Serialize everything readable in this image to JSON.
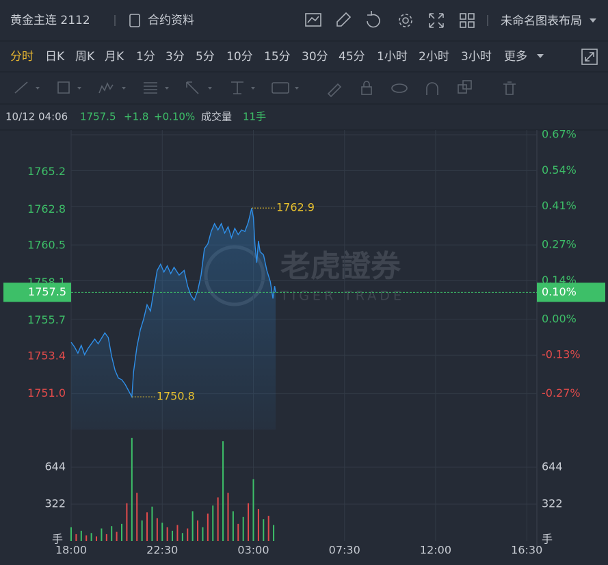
{
  "header": {
    "title": "黄金主连 2112",
    "contract": "合约资料",
    "layout": "未命名图表布局"
  },
  "periods": [
    "分时",
    "日K",
    "周K",
    "月K",
    "1分",
    "3分",
    "5分",
    "10分",
    "15分",
    "30分",
    "45分",
    "1小时",
    "2小时",
    "3小时",
    "更多"
  ],
  "info": {
    "time": "10/12 04:06",
    "price": 1757.5,
    "change": "+1.8",
    "percent": "+0.10%",
    "volume_label": "成交量",
    "volume": "11手"
  },
  "chart_data": {
    "type": "line",
    "color": "#2f8fe8",
    "up_color": "#3dbf68",
    "down_color": "#e24b4b",
    "watermark": [
      "老虎證券",
      "TIGER TRADE"
    ],
    "xlim": [
      "18:00",
      "17:00"
    ],
    "xticks": [
      "18:00",
      "22:30",
      "03:00",
      "07:30",
      "12:00",
      "16:30"
    ],
    "ylim": [
      1748.7,
      1767.6
    ],
    "yticks": [
      {
        "value": 1765.2,
        "label": "1765.2"
      },
      {
        "value": 1762.8,
        "label": "1762.8"
      },
      {
        "value": 1760.5,
        "label": "1760.5"
      },
      {
        "value": 1758.1,
        "label": "1758.1"
      },
      {
        "value": 1755.7,
        "label": "1755.7"
      },
      {
        "value": 1753.4,
        "label": "1753.4"
      },
      {
        "value": 1751,
        "label": "1751.0"
      }
    ],
    "y2lim": [
      -0.4,
      0.67
    ],
    "y2ticks": [
      {
        "value": 0.67,
        "label": "0.67%"
      },
      {
        "value": 0.54,
        "label": "0.54%"
      },
      {
        "value": 0.41,
        "label": "0.41%"
      },
      {
        "value": 0.27,
        "label": "0.27%"
      },
      {
        "value": 0.14,
        "label": "0.14%"
      },
      {
        "value": 0,
        "label": "0.00%"
      },
      {
        "value": -0.13,
        "label": "-0.13%"
      },
      {
        "value": -0.27,
        "label": "-0.27%"
      }
    ],
    "current": {
      "value": 1757.5,
      "percent_label": "0.10%"
    },
    "high": {
      "time": "02:55",
      "value": 1762.9
    },
    "low": {
      "time": "21:00",
      "value": 1750.8
    },
    "x": [
      "18:00",
      "18:10",
      "18:20",
      "18:30",
      "18:40",
      "18:50",
      "19:10",
      "19:20",
      "19:40",
      "19:50",
      "20:00",
      "20:10",
      "20:20",
      "20:30",
      "20:40",
      "20:50",
      "21:00",
      "21:05",
      "21:15",
      "21:25",
      "21:35",
      "21:45",
      "21:55",
      "22:05",
      "22:15",
      "22:25",
      "22:35",
      "22:45",
      "22:55",
      "23:05",
      "23:20",
      "23:35",
      "23:45",
      "23:55",
      "00:05",
      "00:15",
      "00:25",
      "00:35",
      "00:45",
      "00:55",
      "01:05",
      "01:15",
      "01:25",
      "01:35",
      "01:45",
      "01:55",
      "02:05",
      "02:15",
      "02:25",
      "02:35",
      "02:45",
      "02:55",
      "03:00",
      "03:05",
      "03:10",
      "03:15",
      "03:20",
      "03:30",
      "03:40",
      "03:50",
      "03:58",
      "04:03",
      "04:06"
    ],
    "values": [
      1754.3,
      1754.0,
      1753.6,
      1754.1,
      1753.5,
      1753.9,
      1754.5,
      1754.2,
      1754.9,
      1754.6,
      1753.4,
      1752.5,
      1752.0,
      1751.9,
      1751.6,
      1751.2,
      1750.8,
      1752.4,
      1754.0,
      1755.1,
      1755.8,
      1756.7,
      1756.3,
      1757.6,
      1758.9,
      1759.3,
      1758.8,
      1759.2,
      1758.7,
      1759.1,
      1758.6,
      1758.9,
      1757.9,
      1757.3,
      1757.0,
      1757.6,
      1758.6,
      1760.3,
      1760.6,
      1761.4,
      1761.9,
      1761.5,
      1761.9,
      1761.3,
      1761.7,
      1761.0,
      1761.6,
      1761.2,
      1761.5,
      1761.4,
      1762.0,
      1762.9,
      1762.3,
      1760.5,
      1759.4,
      1760.8,
      1760.1,
      1759.9,
      1758.9,
      1758.2,
      1757.1,
      1757.9,
      1757.5
    ],
    "volume": {
      "unit": "手",
      "ylim": [
        0,
        972
      ],
      "yticks": [
        644,
        322
      ],
      "x": [
        "18:00",
        "18:15",
        "18:30",
        "18:45",
        "19:00",
        "19:15",
        "19:30",
        "19:45",
        "20:00",
        "20:15",
        "20:30",
        "20:45",
        "21:00",
        "21:15",
        "21:30",
        "21:45",
        "22:00",
        "22:15",
        "22:30",
        "22:45",
        "23:00",
        "23:15",
        "23:30",
        "23:45",
        "00:00",
        "00:15",
        "00:30",
        "00:45",
        "01:00",
        "01:15",
        "01:30",
        "01:45",
        "02:00",
        "02:15",
        "02:30",
        "02:45",
        "03:00",
        "03:15",
        "03:30",
        "03:45",
        "04:00"
      ],
      "values": [
        120,
        60,
        90,
        50,
        70,
        40,
        110,
        60,
        130,
        80,
        150,
        330,
        900,
        420,
        180,
        250,
        300,
        200,
        160,
        120,
        90,
        140,
        70,
        110,
        260,
        180,
        120,
        240,
        310,
        380,
        870,
        420,
        260,
        150,
        210,
        330,
        540,
        280,
        190,
        220,
        140
      ]
    }
  }
}
